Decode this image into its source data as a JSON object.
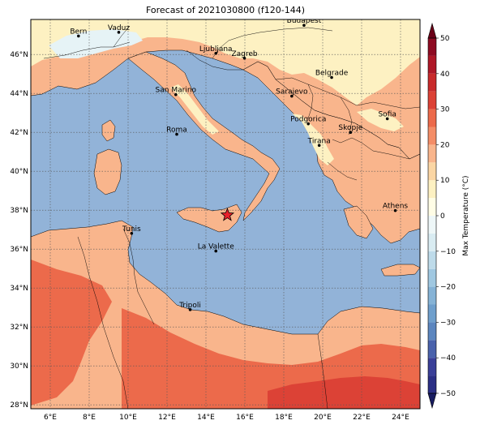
{
  "title": "Forecast of 2021030800 (f120-144)",
  "map": {
    "lon_range": [
      5,
      25
    ],
    "lat_range": [
      27.8,
      47.8
    ],
    "lon_ticks": [
      {
        "value": 6,
        "label": "6°E"
      },
      {
        "value": 8,
        "label": "8°E"
      },
      {
        "value": 10,
        "label": "10°E"
      },
      {
        "value": 12,
        "label": "12°E"
      },
      {
        "value": 14,
        "label": "14°E"
      },
      {
        "value": 16,
        "label": "16°E"
      },
      {
        "value": 18,
        "label": "18°E"
      },
      {
        "value": 20,
        "label": "20°E"
      },
      {
        "value": 22,
        "label": "22°E"
      },
      {
        "value": 24,
        "label": "24°E"
      }
    ],
    "lat_ticks": [
      {
        "value": 28,
        "label": "28°N"
      },
      {
        "value": 30,
        "label": "30°N"
      },
      {
        "value": 32,
        "label": "32°N"
      },
      {
        "value": 34,
        "label": "34°N"
      },
      {
        "value": 36,
        "label": "36°N"
      },
      {
        "value": 38,
        "label": "38°N"
      },
      {
        "value": 40,
        "label": "40°N"
      },
      {
        "value": 42,
        "label": "42°N"
      },
      {
        "value": 44,
        "label": "44°N"
      },
      {
        "value": 46,
        "label": "46°N"
      }
    ],
    "grid": true,
    "sea_color": "#92b3d8",
    "cities": [
      {
        "name": "Bern",
        "lon": 7.45,
        "lat": 46.95
      },
      {
        "name": "Vaduz",
        "lon": 9.52,
        "lat": 47.14
      },
      {
        "name": "Budapest",
        "lon": 19.04,
        "lat": 47.5
      },
      {
        "name": "Ljubljana",
        "lon": 14.51,
        "lat": 46.06
      },
      {
        "name": "Zagreb",
        "lon": 15.98,
        "lat": 45.81
      },
      {
        "name": "San Marino",
        "lon": 12.45,
        "lat": 43.94
      },
      {
        "name": "Sarajevo",
        "lon": 18.41,
        "lat": 43.86
      },
      {
        "name": "Belgrade",
        "lon": 20.46,
        "lat": 44.82
      },
      {
        "name": "Podgorica",
        "lon": 19.26,
        "lat": 42.44
      },
      {
        "name": "Sofia",
        "lon": 23.32,
        "lat": 42.7
      },
      {
        "name": "Roma",
        "lon": 12.5,
        "lat": 41.9
      },
      {
        "name": "Skopje",
        "lon": 21.43,
        "lat": 42.0
      },
      {
        "name": "Tirana",
        "lon": 19.82,
        "lat": 41.33
      },
      {
        "name": "Athens",
        "lon": 23.73,
        "lat": 37.98
      },
      {
        "name": "Tunis",
        "lon": 10.18,
        "lat": 36.81
      },
      {
        "name": "La Valette",
        "lon": 14.51,
        "lat": 35.9
      },
      {
        "name": "Tripoli",
        "lon": 13.19,
        "lat": 32.89
      }
    ],
    "marker": {
      "symbol": "star",
      "lon": 15.1,
      "lat": 37.75,
      "color": "#e8202a"
    }
  },
  "colorbar": {
    "label": "Max Temperature (°C)",
    "ticks": [
      {
        "value": 50,
        "label": "50"
      },
      {
        "value": 40,
        "label": "40"
      },
      {
        "value": 30,
        "label": "30"
      },
      {
        "value": 20,
        "label": "20"
      },
      {
        "value": 10,
        "label": "10"
      },
      {
        "value": 0,
        "label": "0"
      },
      {
        "value": -10,
        "label": "−10"
      },
      {
        "value": -20,
        "label": "−20"
      },
      {
        "value": -30,
        "label": "−30"
      },
      {
        "value": -40,
        "label": "−40"
      },
      {
        "value": -50,
        "label": "−50"
      }
    ],
    "bands": [
      {
        "from": -50,
        "to": -45,
        "color": "#2b2f85"
      },
      {
        "from": -45,
        "to": -40,
        "color": "#3a3f98"
      },
      {
        "from": -40,
        "to": -35,
        "color": "#4a62ac"
      },
      {
        "from": -35,
        "to": -30,
        "color": "#5c86bf"
      },
      {
        "from": -30,
        "to": -25,
        "color": "#6f9fcc"
      },
      {
        "from": -25,
        "to": -20,
        "color": "#86b3d6"
      },
      {
        "from": -20,
        "to": -15,
        "color": "#a0c8e1"
      },
      {
        "from": -15,
        "to": -10,
        "color": "#bedbea"
      },
      {
        "from": -10,
        "to": -5,
        "color": "#d9ecf2"
      },
      {
        "from": -5,
        "to": 0,
        "color": "#eef7f8"
      },
      {
        "from": 0,
        "to": 5,
        "color": "#fffde6"
      },
      {
        "from": 5,
        "to": 10,
        "color": "#fdf1c2"
      },
      {
        "from": 10,
        "to": 15,
        "color": "#fbd6a4"
      },
      {
        "from": 15,
        "to": 20,
        "color": "#f9b58c"
      },
      {
        "from": 20,
        "to": 25,
        "color": "#f48d67"
      },
      {
        "from": 25,
        "to": 30,
        "color": "#ec6a4b"
      },
      {
        "from": 30,
        "to": 35,
        "color": "#dc4236"
      },
      {
        "from": 35,
        "to": 40,
        "color": "#c82a2b"
      },
      {
        "from": 40,
        "to": 45,
        "color": "#ae1727"
      },
      {
        "from": 45,
        "to": 50,
        "color": "#8e0a22"
      }
    ],
    "under_color": "#181c60",
    "over_color": "#6b0018"
  }
}
